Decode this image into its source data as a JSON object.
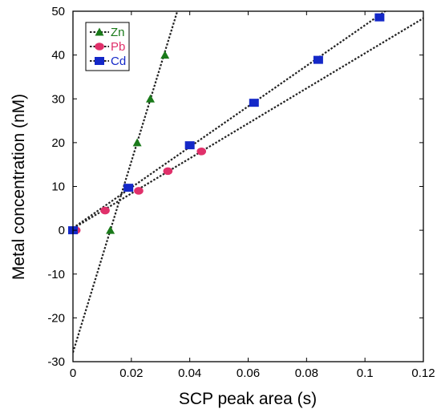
{
  "chart_data": {
    "type": "scatter",
    "title": "",
    "xlabel": "SCP peak area (s)",
    "ylabel": "Metal concentration (nM)",
    "xlim": [
      0,
      0.12
    ],
    "ylim": [
      -30,
      50
    ],
    "x_ticks": [
      "0",
      "0.02",
      "0.04",
      "0.06",
      "0.08",
      "0.1",
      "0.12"
    ],
    "y_ticks": [
      "-30",
      "-20",
      "-10",
      "0",
      "10",
      "20",
      "30",
      "40",
      "50"
    ],
    "x_tick_values": [
      0,
      0.02,
      0.04,
      0.06,
      0.08,
      0.1,
      0.12
    ],
    "y_tick_values": [
      -30,
      -20,
      -10,
      0,
      10,
      20,
      30,
      40,
      50
    ],
    "grid": false,
    "legend_position": "top-left",
    "series": [
      {
        "name": "Zn",
        "color": "#1a7a1a",
        "marker": "triangle",
        "points": [
          [
            0.0128,
            0
          ],
          [
            0.022,
            20
          ],
          [
            0.0265,
            30
          ],
          [
            0.0315,
            40
          ]
        ],
        "fit": {
          "slope": 2180,
          "intercept": -27.9
        }
      },
      {
        "name": "Pb",
        "color": "#e0306a",
        "marker": "circle",
        "points": [
          [
            0.001,
            0
          ],
          [
            0.011,
            4.5
          ],
          [
            0.0225,
            9
          ],
          [
            0.0325,
            13.5
          ],
          [
            0.044,
            18
          ]
        ],
        "fit": {
          "slope": 400,
          "intercept": 0.4
        }
      },
      {
        "name": "Cd",
        "color": "#1428c8",
        "marker": "square",
        "points": [
          [
            0,
            0
          ],
          [
            0.019,
            9.7
          ],
          [
            0.04,
            19.4
          ],
          [
            0.062,
            29.1
          ],
          [
            0.084,
            38.9
          ],
          [
            0.105,
            48.6
          ]
        ],
        "fit": {
          "slope": 463,
          "intercept": 0.5
        }
      }
    ]
  }
}
